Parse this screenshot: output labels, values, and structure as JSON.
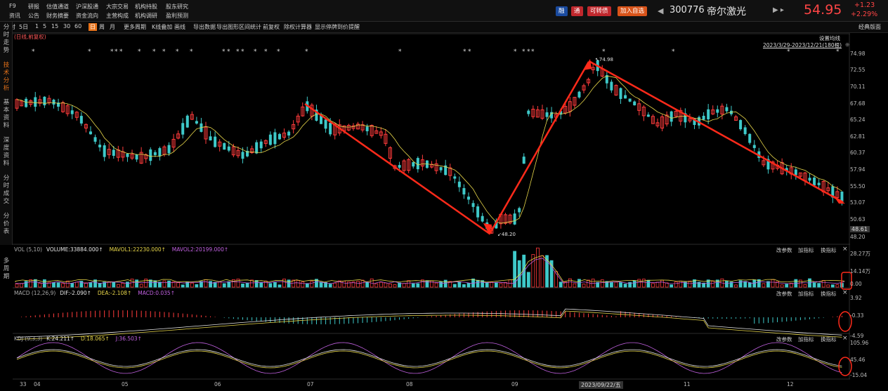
{
  "top_nav": {
    "row1": [
      "F9",
      "研报",
      "估值通道",
      "沪深股通",
      "大宗交易",
      "机构持股",
      "股东研究"
    ],
    "row2": [
      "资讯",
      "公告",
      "财务摘要",
      "资金流向",
      "主营构成",
      "机构调研",
      "盈利预测"
    ]
  },
  "header": {
    "badges": [
      {
        "label": "融",
        "color": "#1a4a9e"
      },
      {
        "label": "通",
        "color": "#c0282d"
      },
      {
        "label": "可转债",
        "color": "#c0282d"
      },
      {
        "label": "加入自选",
        "color": "#d9541a"
      }
    ],
    "code": "300776",
    "name": "帝尔激光",
    "price": "54.95",
    "change": "+1.23",
    "change_pct": "+2.29%",
    "layout_label": "经典版面"
  },
  "toolbar": {
    "items": [
      "分时",
      "5日",
      "1",
      "5",
      "15",
      "30",
      "60",
      "日",
      "周",
      "月",
      "更多周期",
      "K线叠加",
      "画线",
      "导出数据",
      "导出图形",
      "区间统计",
      "前复权",
      "除权计算器",
      "显示停牌",
      "到价提醒"
    ],
    "active": "日"
  },
  "sidebar": {
    "groups": [
      "分时走势",
      "技术分析",
      "基本资料",
      "深度资料",
      "分时成交",
      "分价表"
    ],
    "active": "技术分析"
  },
  "price_panel": {
    "sub_label": "(日线,前复权)",
    "ma_setting": "设置均线",
    "range": "2023/3/29-2023/12/21(180根)",
    "y_ticks": [
      "74.98",
      "72.55",
      "70.11",
      "67.68",
      "65.24",
      "62.81",
      "60.37",
      "57.94",
      "55.50",
      "53.07",
      "50.63",
      "48.20"
    ],
    "current_price": "48.61",
    "high_label": "↖74.98",
    "low_label": "↙48.20"
  },
  "vol_panel": {
    "title": "VOL (5,10)",
    "v1": "VOLUME:33884.000↑",
    "v2": "MAVOL1:22230.000↑",
    "v3": "MAVOL2:20199.000↑",
    "y_ticks": [
      "28.27万",
      "14.14万",
      "0.00"
    ],
    "left_label": "多周期"
  },
  "macd_panel": {
    "title": "MACD (12,26,9)",
    "v1": "DIF:-2.090↑",
    "v2": "DEA:-2.108↑",
    "v3": "MACD:0.035↑",
    "y_ticks": [
      "3.92",
      "-0.33",
      "-4.59"
    ]
  },
  "kdj_panel": {
    "title": "KDJ (9,3,3)",
    "v1": "K:24.211↑",
    "v2": "D:18.065↑",
    "v3": "J:36.503↑",
    "y_ticks": [
      "105.96",
      "45.46",
      "-15.04"
    ]
  },
  "panel_buttons": {
    "param": "改参数",
    "add": "加指标",
    "swap": "换指标",
    "close": "×"
  },
  "x_axis": {
    "labels": [
      "33",
      "04",
      "05",
      "06",
      "07",
      "08",
      "09",
      "11",
      "12"
    ],
    "cursor_date": "2023/09/22/五"
  },
  "colors": {
    "up": "#ff3b3b",
    "down": "#3ec9c9",
    "ma1": "#e8d74a",
    "ma2": "#c060e0",
    "trend": "#ff2a1a"
  }
}
